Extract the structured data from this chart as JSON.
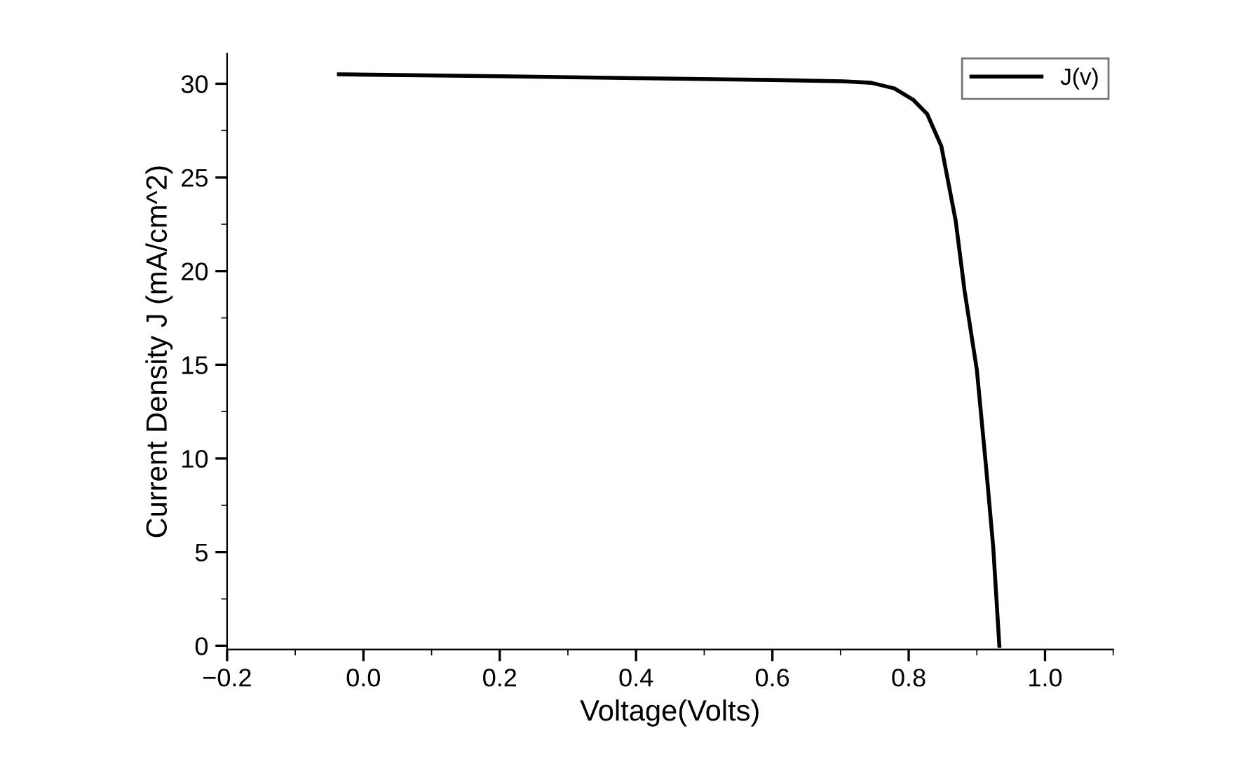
{
  "chart_data": {
    "type": "line",
    "xlabel": "Voltage(Volts)",
    "ylabel": "Current Density J (mA/cm^2)",
    "xlim": [
      -0.2,
      1.1
    ],
    "xticks": [
      {
        "value": -0.2,
        "label": "−0.2"
      },
      {
        "value": 0.0,
        "label": "0.0"
      },
      {
        "value": 0.2,
        "label": "0.2"
      },
      {
        "value": 0.4,
        "label": "0.4"
      },
      {
        "value": 0.6,
        "label": "0.6"
      },
      {
        "value": 0.8,
        "label": "0.8"
      },
      {
        "value": 1.0,
        "label": "1.0"
      }
    ],
    "ylim": [
      -0.2,
      31.6
    ],
    "yticks": [
      0,
      5,
      10,
      15,
      20,
      25,
      30
    ],
    "grid": false,
    "legend": "top right",
    "marker": "none",
    "line_style": "solid",
    "series": [
      {
        "name": "J(v)",
        "color": "#000000",
        "x": [
          -0.036,
          0.2,
          0.4,
          0.6,
          0.704,
          0.745,
          0.779,
          0.807,
          0.827,
          0.848,
          0.869,
          0.882,
          0.9,
          0.913,
          0.924,
          0.933
        ],
        "values": [
          30.5,
          30.4,
          30.3,
          30.2,
          30.13,
          30.05,
          29.75,
          29.13,
          28.39,
          26.65,
          22.67,
          18.94,
          14.72,
          9.75,
          5.27,
          0
        ]
      }
    ]
  }
}
